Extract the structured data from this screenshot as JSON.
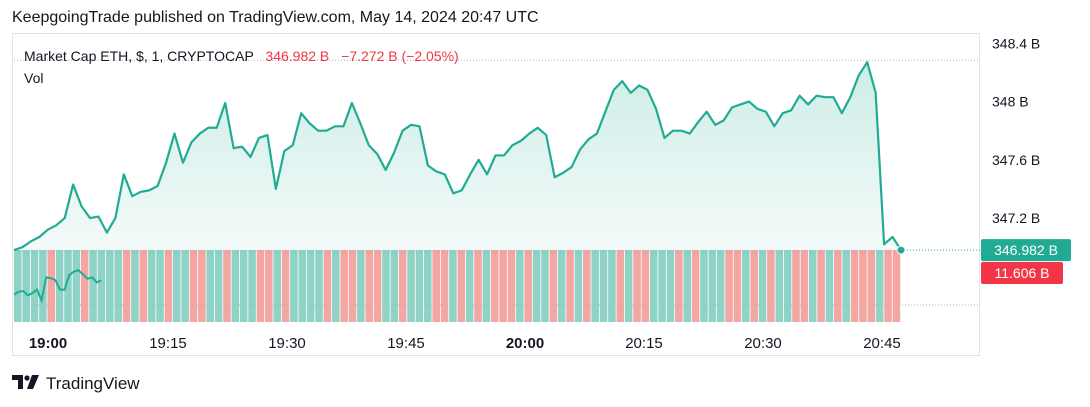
{
  "header": {
    "text": "KeepgoingTrade published on TradingView.com, May 14, 2024 20:47 UTC"
  },
  "legend": {
    "symbol": "Market Cap ETH, $, 1, CRYPTOCAP",
    "price": "346.982 B",
    "change": "−7.272 B (−2.05%)",
    "vol_label": "Vol"
  },
  "price_badge": {
    "label": "346.982 B",
    "color": "#22ab94"
  },
  "vol_badge": {
    "label": "11.606 B",
    "color": "#f23645"
  },
  "footer": {
    "brand": "TradingView",
    "logo": "tradingview-logo"
  },
  "colors": {
    "line": "#22ab94",
    "up_vol": "#8fd3c7",
    "down_vol": "#f4a6a3"
  },
  "chart_data": {
    "type": "area",
    "y_axis_ticks": [
      "348.4 B",
      "348 B",
      "347.6 B",
      "347.2 B"
    ],
    "y_tick_values": [
      348.4,
      348.0,
      347.6,
      347.2
    ],
    "ylim": [
      346.96,
      348.45
    ],
    "x_axis_ticks": [
      "19:00",
      "19:15",
      "19:30",
      "19:45",
      "20:00",
      "20:15",
      "20:30",
      "20:45"
    ],
    "x_bold_ticks": [
      "19:00",
      "20:00"
    ],
    "series": [
      {
        "values": [
          346.98,
          347.0,
          347.04,
          347.07,
          347.12,
          347.15,
          347.2,
          347.43,
          347.28,
          347.2,
          347.21,
          347.1,
          347.2,
          347.5,
          347.35,
          347.38,
          347.39,
          347.42,
          347.58,
          347.78,
          347.58,
          347.72,
          347.78,
          347.82,
          347.82,
          347.99,
          347.68,
          347.69,
          347.62,
          347.75,
          347.77,
          347.4,
          347.66,
          347.7,
          347.92,
          347.85,
          347.8,
          347.8,
          347.83,
          347.83,
          347.99,
          347.85,
          347.7,
          347.64,
          347.53,
          347.65,
          347.8,
          347.84,
          347.83,
          347.56,
          347.52,
          347.5,
          347.37,
          347.39,
          347.5,
          347.6,
          347.5,
          347.63,
          347.63,
          347.7,
          347.73,
          347.78,
          347.82,
          347.77,
          347.48,
          347.51,
          347.55,
          347.67,
          347.74,
          347.78,
          347.93,
          348.08,
          348.14,
          348.06,
          348.11,
          348.08,
          347.95,
          347.75,
          347.8,
          347.8,
          347.78,
          347.86,
          347.93,
          347.84,
          347.87,
          347.96,
          347.98,
          348.0,
          347.95,
          347.93,
          347.83,
          347.92,
          347.94,
          348.04,
          347.98,
          348.04,
          348.03,
          348.03,
          347.92,
          348.03,
          348.18,
          348.27,
          348.06,
          347.02,
          347.07,
          346.98
        ]
      }
    ],
    "volume_colors": "ggggrgggrggggrgrggrggrrggrgggrrgrggggrgrrgrrggrgggrrgrgrgrrrgrggrgrgrgggrgrrgggrgrgggrrgrgrggrrgrgrgrrrgrrgrrrgrgrrggggrrrgggrrgrgrggrrrrgrggrr",
    "volume_values": [
      0.55,
      0.48,
      0.6,
      0.5,
      0.62,
      0.58,
      0.5,
      0.48,
      0.55,
      0.6,
      0.45,
      0.62,
      0.5,
      0.52,
      0.58,
      0.5,
      0.6,
      0.46,
      0.55,
      0.62,
      0.5,
      0.48,
      0.55,
      0.6,
      0.52,
      0.5,
      0.58,
      0.6,
      0.55,
      0.5,
      0.62,
      0.48,
      0.55,
      0.6,
      0.5,
      0.52,
      0.58,
      0.55,
      0.5,
      0.6,
      0.48,
      0.55,
      0.62,
      0.5,
      0.52,
      0.58,
      0.6,
      0.55,
      0.5,
      0.48,
      0.55,
      0.6,
      0.52,
      0.5,
      0.58,
      0.6,
      0.55,
      0.5,
      0.62,
      0.48,
      0.55,
      0.6,
      0.5,
      0.52,
      0.58,
      0.55,
      0.5,
      0.6,
      0.48,
      0.55,
      0.62,
      0.5,
      0.52,
      0.58,
      0.6,
      0.55,
      0.5,
      0.48,
      0.55,
      0.6,
      0.52,
      0.5,
      0.58,
      0.6,
      0.55,
      0.5,
      0.62,
      0.48,
      0.55,
      0.6,
      0.5,
      0.52,
      0.58,
      0.55,
      0.5,
      0.6,
      0.48,
      0.55,
      0.62,
      0.5,
      0.52,
      0.58,
      0.6,
      0.55,
      0.5,
      0.48
    ],
    "volume_line": [
      0.38,
      0.42,
      0.43,
      0.37,
      0.4,
      0.45,
      0.3,
      0.62,
      0.61,
      0.58,
      0.45,
      0.45,
      0.65,
      0.7,
      0.72,
      0.66,
      0.6,
      0.62,
      0.55,
      0.58
    ]
  }
}
